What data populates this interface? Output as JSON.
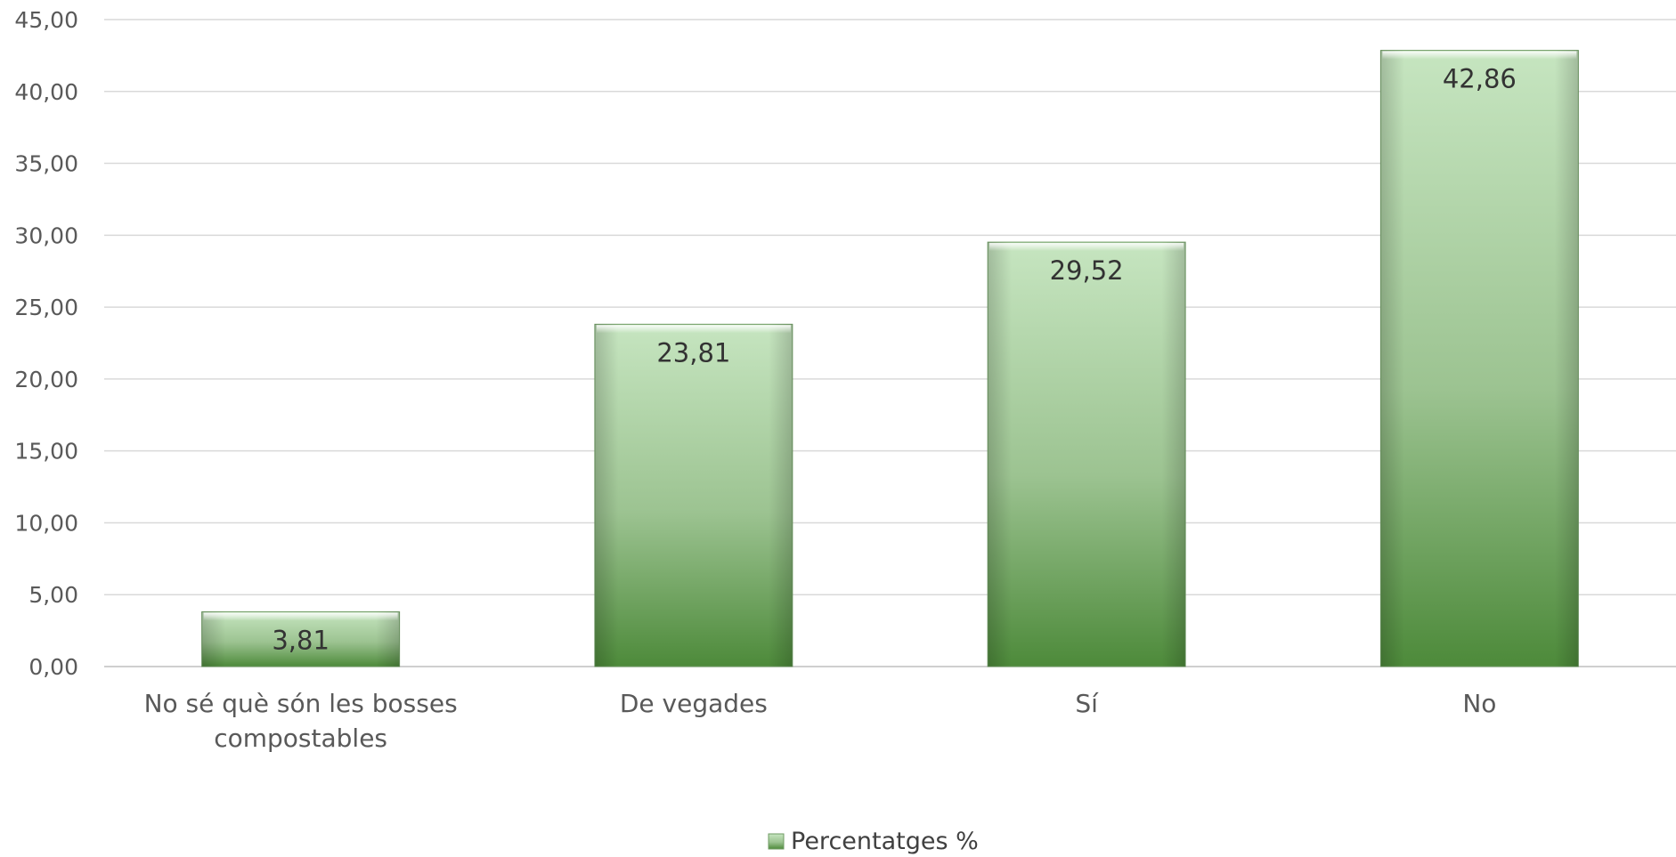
{
  "chart_data": {
    "type": "bar",
    "categories": [
      "No sé què són les bosses compostables",
      "De vegades",
      "Sí",
      "No"
    ],
    "category_lines": [
      [
        "No sé què són les bosses",
        "compostables"
      ],
      [
        "De vegades"
      ],
      [
        "Sí"
      ],
      [
        "No"
      ]
    ],
    "series": [
      {
        "name": "Percentatges %",
        "values": [
          3.81,
          23.81,
          29.52,
          42.86
        ]
      }
    ],
    "data_labels": [
      "3,81",
      "23,81",
      "29,52",
      "42,86"
    ],
    "yticks": [
      "0,00",
      "5,00",
      "10,00",
      "15,00",
      "20,00",
      "25,00",
      "30,00",
      "35,00",
      "40,00",
      "45,00"
    ],
    "ylim": [
      0,
      45
    ],
    "ystep": 5,
    "grid": true,
    "legend_position": "bottom-center",
    "colors": {
      "bar_top": "#c6e5c0",
      "bar_mid": "#9cc391",
      "bar_bottom": "#4d8a3a",
      "bar_edge": "#6f9b63"
    }
  }
}
